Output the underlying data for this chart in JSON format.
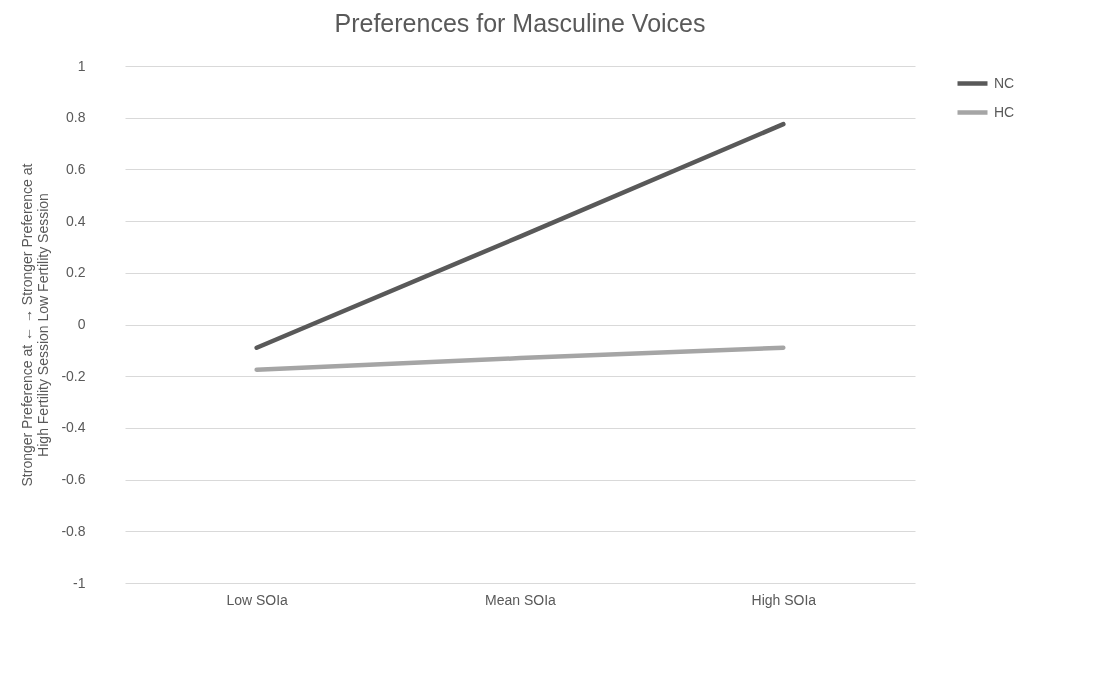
{
  "chart_data": {
    "type": "line",
    "title": "Preferences for Masculine Voices",
    "ylabel": "Stronger Preference at ←                    → Stronger Preference at\nHigh Fertility Session                    Low Fertility Session",
    "categories": [
      "Low SOIa",
      "Mean SOIa",
      "High SOIa"
    ],
    "series": [
      {
        "name": "NC",
        "color": "#595959",
        "values": [
          -0.09,
          0.34,
          0.775
        ]
      },
      {
        "name": "HC",
        "color": "#a5a5a5",
        "values": [
          -0.175,
          -0.13,
          -0.09
        ]
      }
    ],
    "ylim": [
      -1,
      1
    ],
    "yticks": [
      -1,
      -0.8,
      -0.6,
      -0.4,
      -0.2,
      0,
      0.2,
      0.4,
      0.6,
      0.8,
      1
    ],
    "grid": "y",
    "legend": "right",
    "marker": "none",
    "line_style": "solid"
  }
}
